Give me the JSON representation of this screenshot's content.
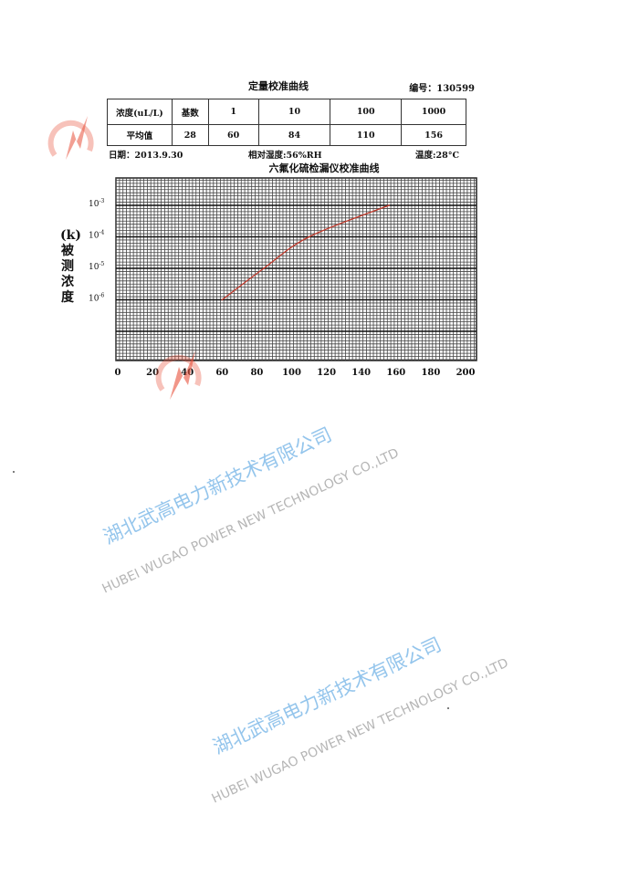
{
  "document": {
    "title": "定量校准曲线",
    "serial": "编号：130599",
    "table": {
      "rows": [
        [
          "浓度(uL/L)",
          "基数",
          "1",
          "10",
          "100",
          "1000"
        ],
        [
          "平均值",
          "28",
          "60",
          "84",
          "110",
          "156"
        ]
      ]
    },
    "date": "日期：2013.9.30",
    "humidity": "相对湿度:56%RH",
    "temperature": "温度:28°C"
  },
  "watermark": {
    "cn": "湖北武高电力新技术有限公司",
    "en": "HUBEI WUGAO POWER NEW TECHNOLOGY CO.,LTD",
    "logo_color": "#e8503a"
  },
  "chart_data": {
    "type": "line",
    "title": "六氟化硫检漏仪校准曲线",
    "ylabel": "(k)被测浓度",
    "xlabel": "",
    "x_ticks": [
      "0",
      "20",
      "40",
      "60",
      "80",
      "100",
      "120",
      "140",
      "160",
      "180",
      "200"
    ],
    "y_ticks": [
      {
        "base": "10",
        "exp": "-3",
        "value": 0.001
      },
      {
        "base": "10",
        "exp": "-4",
        "value": 0.0001
      },
      {
        "base": "10",
        "exp": "-5",
        "value": 1e-05
      },
      {
        "base": "10",
        "exp": "-6",
        "value": 1e-06
      }
    ],
    "xlim": [
      0,
      200
    ],
    "y_scale": "log",
    "grid": true,
    "series": [
      {
        "color": "#c0392b",
        "x": [
          60,
          84,
          110,
          156
        ],
        "y": [
          1e-06,
          1e-05,
          0.0001,
          0.001
        ]
      }
    ]
  }
}
